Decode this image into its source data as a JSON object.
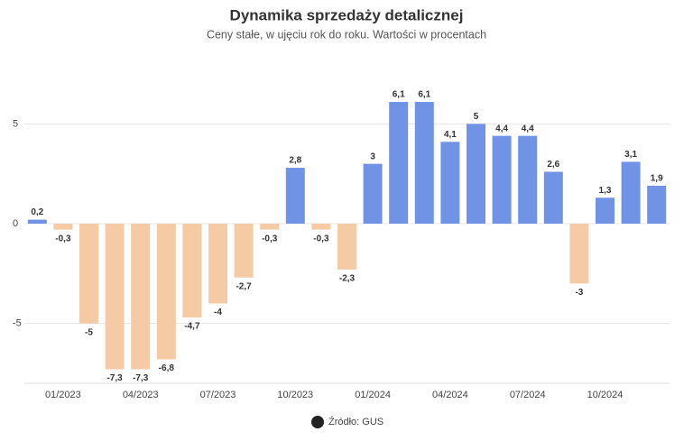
{
  "chart_data": {
    "type": "bar",
    "title": "Dynamika sprzedaży detalicznej",
    "subtitle": "Ceny stałe, w ujęciu rok do roku. Wartości w procentach",
    "source": "Źródło: GUS",
    "categories": [
      null,
      "01/2023",
      null,
      null,
      "04/2023",
      null,
      null,
      "07/2023",
      null,
      null,
      "10/2023",
      null,
      null,
      "01/2024",
      null,
      null,
      "04/2024",
      null,
      null,
      "07/2024",
      null,
      null,
      "10/2024",
      null,
      null
    ],
    "values": [
      0.2,
      -0.3,
      -5,
      -7.3,
      -7.3,
      -6.8,
      -4.7,
      -4,
      -2.7,
      -0.3,
      2.8,
      -0.3,
      -2.3,
      3,
      6.1,
      6.1,
      4.1,
      5,
      4.4,
      4.4,
      2.6,
      -3,
      1.3,
      3.1,
      1.9
    ],
    "value_labels": [
      "0,2",
      "-0,3",
      "-5",
      "-7,3",
      "-7,3",
      "-6,8",
      "-4,7",
      "-4",
      "-2,7",
      "-0,3",
      "2,8",
      "-0,3",
      "-2,3",
      "3",
      "6,1",
      "6,1",
      "4,1",
      "5",
      "4,4",
      "4,4",
      "2,6",
      "-3",
      "1,3",
      "3,1",
      "1,9"
    ],
    "positive_color": "#7093e6",
    "negative_color": "#f5cba6",
    "ylim": [
      -8,
      8
    ],
    "yticks": [
      -5,
      0,
      5
    ],
    "grid": true
  }
}
